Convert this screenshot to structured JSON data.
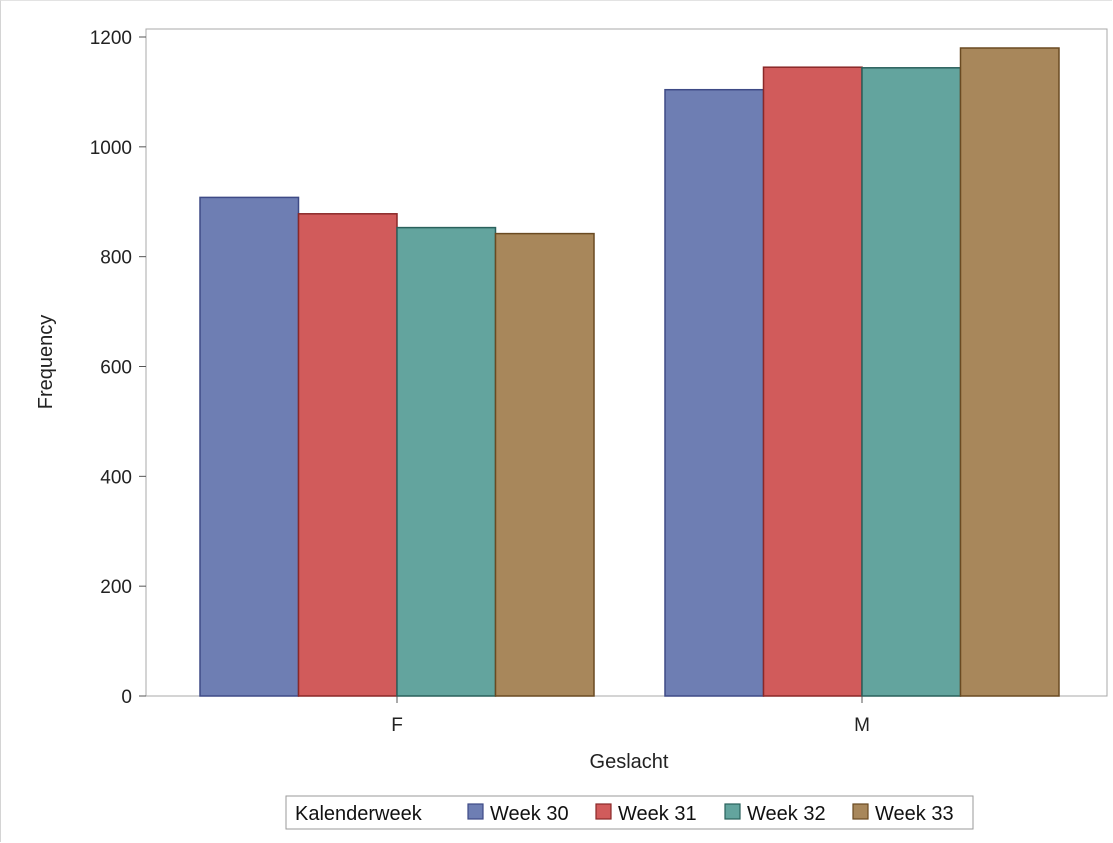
{
  "chart_data": {
    "type": "bar",
    "categories": [
      "F",
      "M"
    ],
    "series": [
      {
        "name": "Week 30",
        "values": [
          908,
          1104
        ],
        "color": "#6e7eb3",
        "stroke": "#3e4a86"
      },
      {
        "name": "Week 31",
        "values": [
          878,
          1145
        ],
        "color": "#d15b5b",
        "stroke": "#8a2828"
      },
      {
        "name": "Week 32",
        "values": [
          853,
          1144
        ],
        "color": "#63a49e",
        "stroke": "#2a615c"
      },
      {
        "name": "Week 33",
        "values": [
          842,
          1180
        ],
        "color": "#a8875b",
        "stroke": "#6a4a22"
      }
    ],
    "xlabel": "Geslacht",
    "ylabel": "Frequency",
    "ylim": [
      0,
      1200
    ],
    "yticks": [
      0,
      200,
      400,
      600,
      800,
      1000,
      1200
    ],
    "legend": {
      "title": "Kalenderweek",
      "position": "bottom"
    },
    "grid": false
  }
}
